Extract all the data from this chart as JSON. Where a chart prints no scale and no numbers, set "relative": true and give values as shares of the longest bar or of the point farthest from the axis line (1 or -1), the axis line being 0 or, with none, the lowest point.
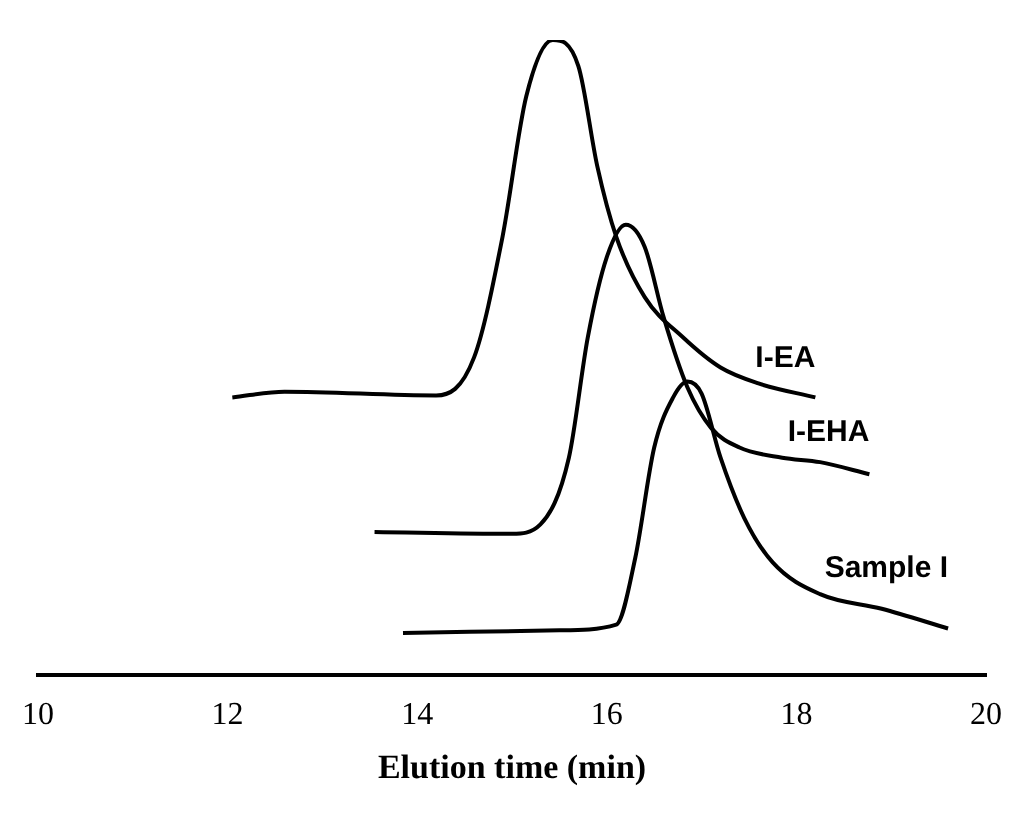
{
  "chart_data": {
    "type": "line",
    "relative": true,
    "xlabel": "Elution time (min)",
    "xlim": [
      10,
      20
    ],
    "xticks": [
      10,
      12,
      14,
      16,
      18,
      20
    ],
    "grid": false,
    "legend": false,
    "marker": "none",
    "line_style": "solid",
    "series": [
      {
        "name": "I-EA",
        "color": "#000000",
        "x": [
          12.05,
          12.6,
          14.2,
          14.6,
          14.9,
          15.15,
          15.43,
          15.7,
          15.9,
          16.1,
          16.4,
          16.8,
          17.2,
          17.6,
          18.2
        ],
        "values": [
          0.437,
          0.446,
          0.44,
          0.5,
          0.69,
          0.911,
          1.0,
          0.959,
          0.801,
          0.69,
          0.595,
          0.532,
          0.484,
          0.459,
          0.437
        ]
      },
      {
        "name": "I-EHA",
        "color": "#000000",
        "x": [
          13.55,
          15.0,
          15.3,
          15.6,
          15.8,
          16.0,
          16.2,
          16.4,
          16.6,
          16.85,
          17.1,
          17.4,
          17.85,
          18.25,
          18.77
        ],
        "values": [
          0.225,
          0.222,
          0.237,
          0.342,
          0.532,
          0.658,
          0.709,
          0.674,
          0.563,
          0.453,
          0.389,
          0.358,
          0.342,
          0.335,
          0.316
        ]
      },
      {
        "name": "Sample I",
        "color": "#000000",
        "x": [
          13.85,
          15.5,
          16.1,
          16.3,
          16.5,
          16.7,
          16.85,
          17.0,
          17.2,
          17.45,
          17.75,
          18.25,
          18.9,
          19.6
        ],
        "values": [
          0.066,
          0.07,
          0.079,
          0.184,
          0.358,
          0.437,
          0.462,
          0.443,
          0.342,
          0.247,
          0.177,
          0.127,
          0.104,
          0.073
        ]
      }
    ]
  }
}
